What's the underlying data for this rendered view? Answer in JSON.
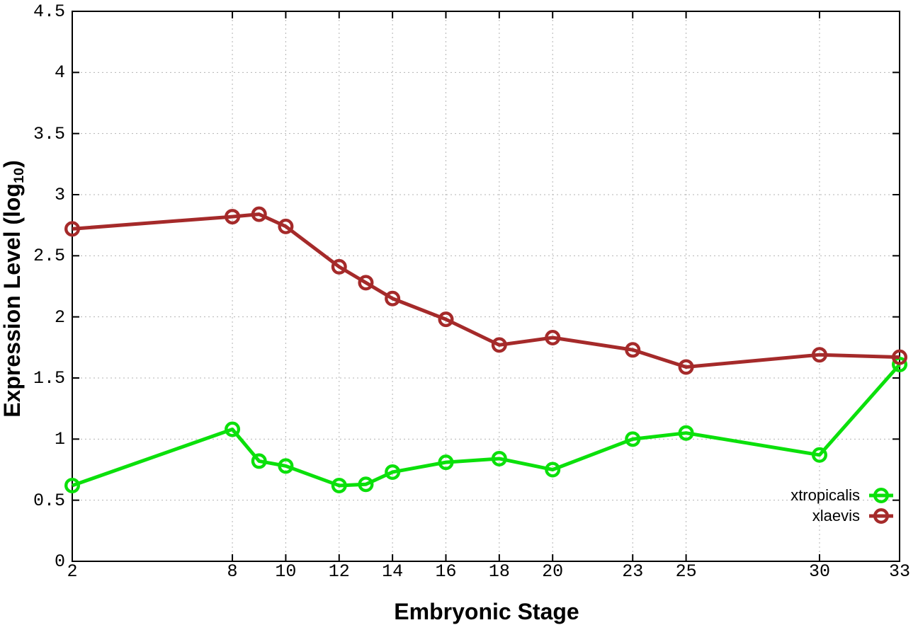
{
  "chart_data": {
    "type": "line",
    "title": "",
    "xlabel": "Embryonic Stage",
    "ylabel": "Expression Level (log10)",
    "ylabel_parts": {
      "prefix": "Expression Level (log",
      "subscript": "10",
      "suffix": ")"
    },
    "xlim": [
      2,
      33
    ],
    "ylim": [
      0,
      4.5
    ],
    "x_ticks": [
      2,
      8,
      10,
      12,
      14,
      16,
      18,
      20,
      23,
      25,
      30,
      33
    ],
    "y_ticks": [
      0,
      0.5,
      1,
      1.5,
      2,
      2.5,
      3,
      3.5,
      4,
      4.5
    ],
    "y_tick_labels": [
      "0",
      "0.5",
      "1",
      "1.5",
      "2",
      "2.5",
      "3",
      "3.5",
      "4",
      "4.5"
    ],
    "grid": "dotted",
    "legend": {
      "position": "inside-bottom-right",
      "entries": [
        {
          "label": "xtropicalis",
          "series": "xtropicalis"
        },
        {
          "label": "xlaevis",
          "series": "xlaevis"
        }
      ]
    },
    "series": [
      {
        "name": "xtropicalis",
        "color": "#0be00b",
        "marker": "open-circle",
        "x": [
          2,
          8,
          9,
          10,
          12,
          13,
          14,
          16,
          18,
          20,
          23,
          25,
          30,
          33
        ],
        "values": [
          0.62,
          1.08,
          0.82,
          0.78,
          0.62,
          0.63,
          0.73,
          0.81,
          0.84,
          0.75,
          1.0,
          1.05,
          0.87,
          1.61
        ]
      },
      {
        "name": "xlaevis",
        "color": "#a52a2a",
        "marker": "open-circle",
        "x": [
          2,
          8,
          9,
          10,
          12,
          13,
          14,
          16,
          18,
          20,
          23,
          25,
          30,
          33
        ],
        "values": [
          2.72,
          2.82,
          2.84,
          2.74,
          2.41,
          2.28,
          2.15,
          1.98,
          1.77,
          1.83,
          1.73,
          1.59,
          1.69,
          1.67
        ]
      }
    ],
    "colors": {
      "grid": "#b3b3b3",
      "border": "#000000",
      "text": "#000000"
    }
  }
}
